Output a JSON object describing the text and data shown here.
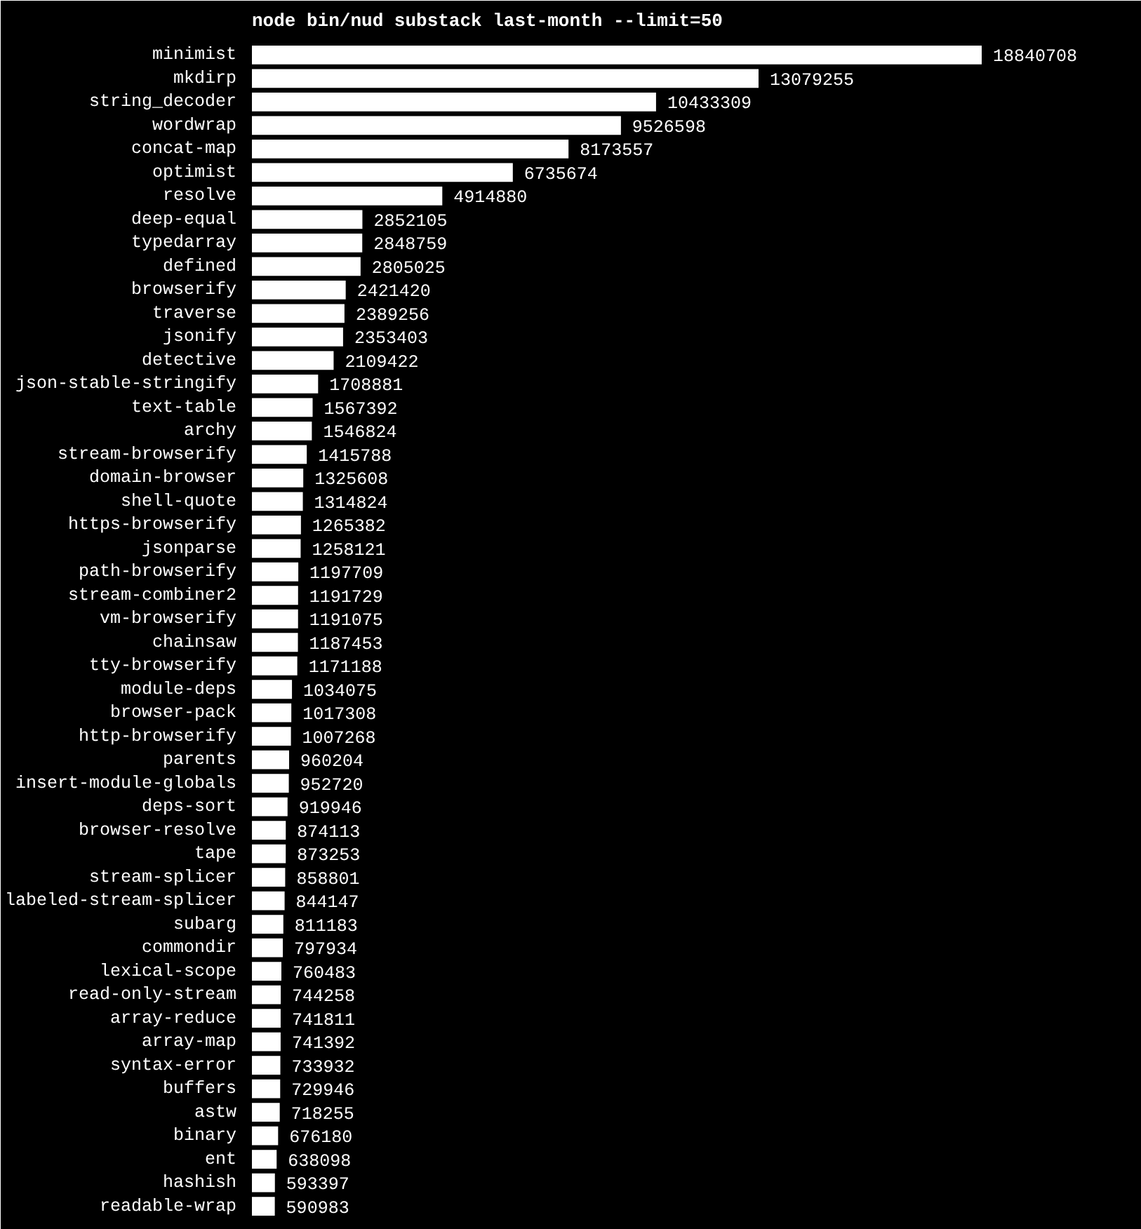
{
  "chart_data": {
    "type": "bar",
    "orientation": "horizontal",
    "title": "node bin/nud substack last-month --limit=50",
    "color": "#ffffff",
    "data_labels": true,
    "categories": [
      "minimist",
      "mkdirp",
      "string_decoder",
      "wordwrap",
      "concat-map",
      "optimist",
      "resolve",
      "deep-equal",
      "typedarray",
      "defined",
      "browserify",
      "traverse",
      "jsonify",
      "detective",
      "json-stable-stringify",
      "text-table",
      "archy",
      "stream-browserify",
      "domain-browser",
      "shell-quote",
      "https-browserify",
      "jsonparse",
      "path-browserify",
      "stream-combiner2",
      "vm-browserify",
      "chainsaw",
      "tty-browserify",
      "module-deps",
      "browser-pack",
      "http-browserify",
      "parents",
      "insert-module-globals",
      "deps-sort",
      "browser-resolve",
      "tape",
      "stream-splicer",
      "labeled-stream-splicer",
      "subarg",
      "commondir",
      "lexical-scope",
      "read-only-stream",
      "array-reduce",
      "array-map",
      "syntax-error",
      "buffers",
      "astw",
      "binary",
      "ent",
      "hashish",
      "readable-wrap"
    ],
    "values": [
      18840708,
      13079255,
      10433309,
      9526598,
      8173557,
      6735674,
      4914880,
      2852105,
      2848759,
      2805025,
      2421420,
      2389256,
      2353403,
      2109422,
      1708881,
      1567392,
      1546824,
      1415788,
      1325608,
      1314824,
      1265382,
      1258121,
      1197709,
      1191729,
      1191075,
      1187453,
      1171188,
      1034075,
      1017308,
      1007268,
      960204,
      952720,
      919946,
      874113,
      873253,
      858801,
      844147,
      811183,
      797934,
      760483,
      744258,
      741811,
      741392,
      733932,
      729946,
      718255,
      676180,
      638098,
      593397,
      590983
    ]
  }
}
